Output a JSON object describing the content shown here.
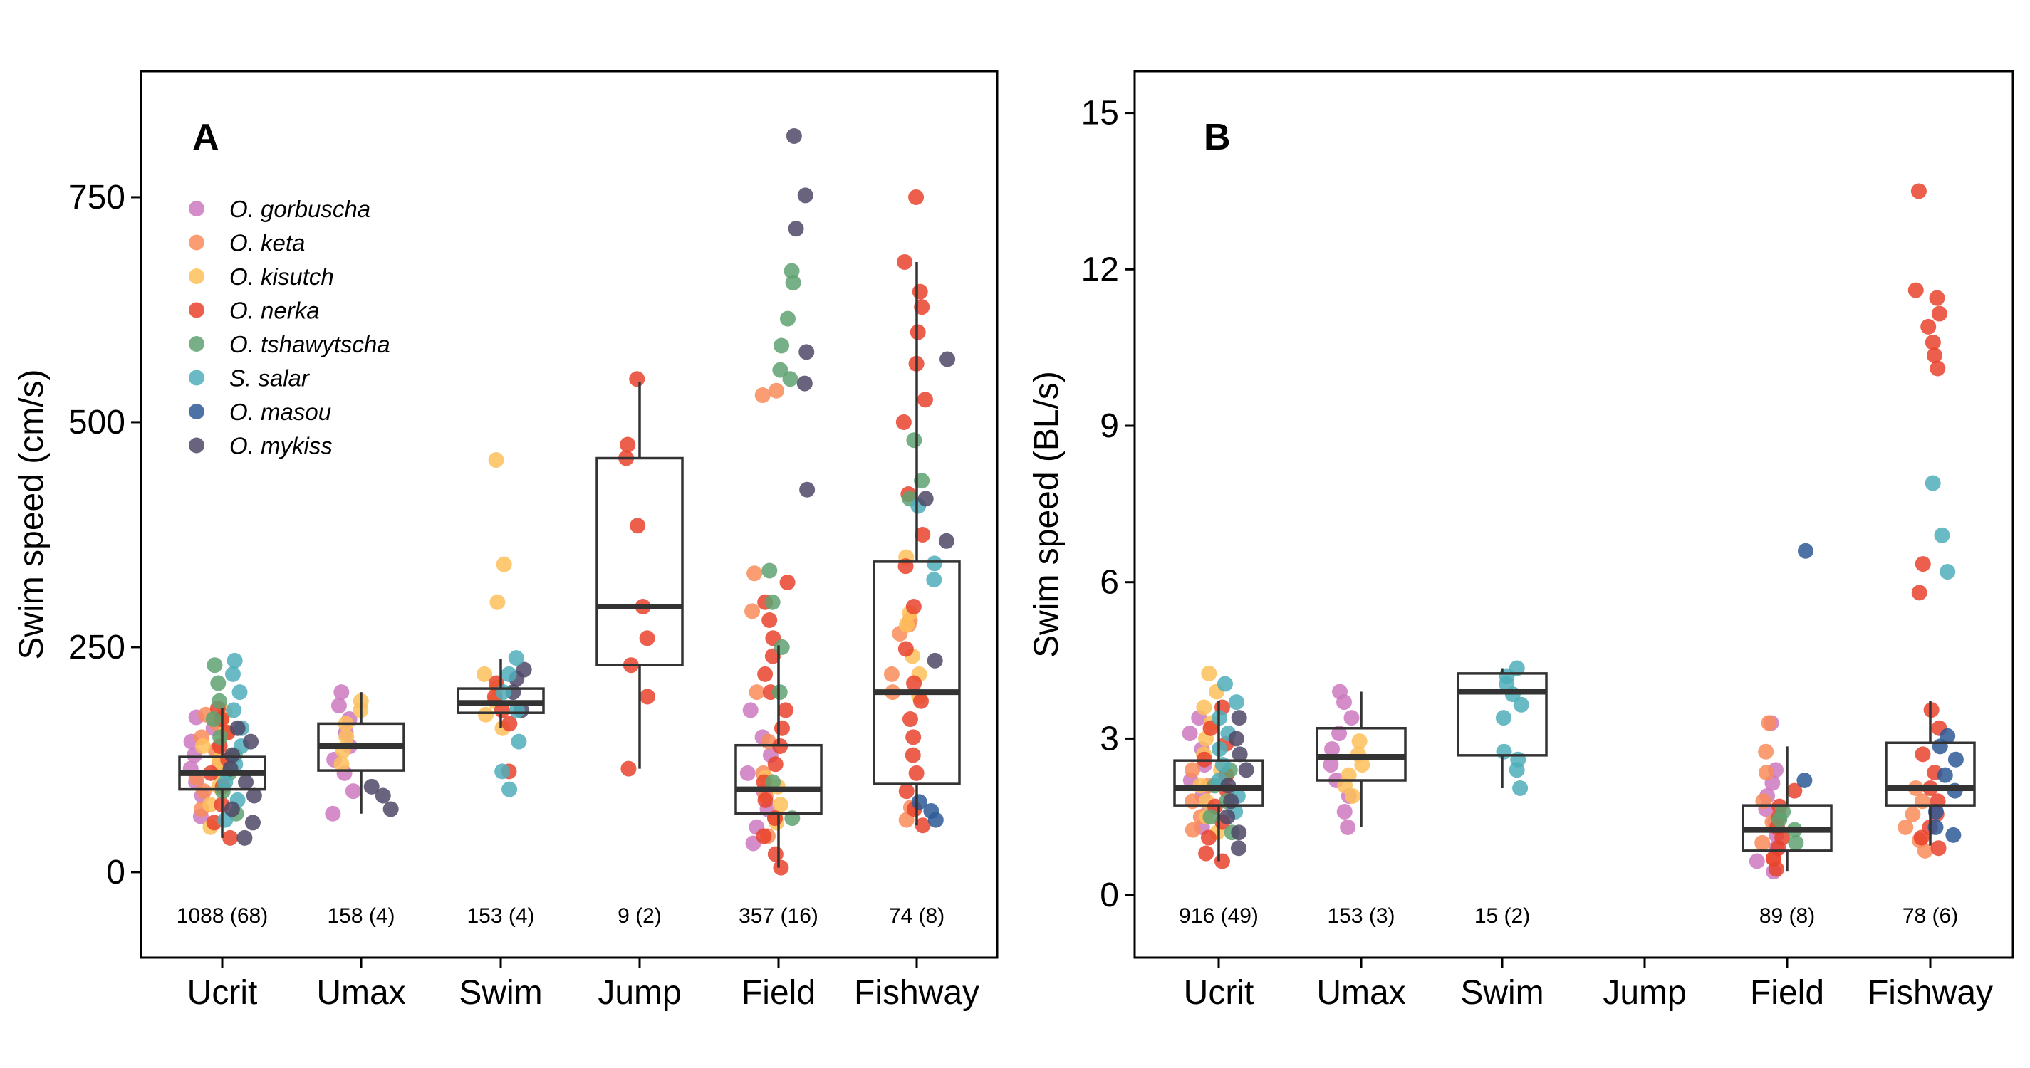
{
  "chart_data": [
    {
      "type": "box",
      "panel_label": "A",
      "ylabel": "Swim speed (cm/s)",
      "xlabel": "",
      "ylim": [
        -95,
        890
      ],
      "yticks": [
        0,
        250,
        500,
        750
      ],
      "categories": [
        "Ucrit",
        "Umax",
        "Swim",
        "Jump",
        "Field",
        "Fishway"
      ],
      "counts": [
        "1088 (68)",
        "158 (4)",
        "153 (4)",
        "9 (2)",
        "357 (16)",
        "74 (8)"
      ],
      "grid": false,
      "legend": {
        "position": "top-left",
        "entries": [
          {
            "name": "O. gorbuscha",
            "color": "#CC79C0"
          },
          {
            "name": "O. keta",
            "color": "#F98C5A"
          },
          {
            "name": "O. kisutch",
            "color": "#FDBF5A"
          },
          {
            "name": "O. nerka",
            "color": "#E8432D"
          },
          {
            "name": "O. tshawytscha",
            "color": "#5FA272"
          },
          {
            "name": "S. salar",
            "color": "#4FAEBB"
          },
          {
            "name": "O. masou",
            "color": "#2E5A96"
          },
          {
            "name": "O. mykiss",
            "color": "#4F4866"
          }
        ]
      },
      "boxes": [
        {
          "category": "Ucrit",
          "q1": 92,
          "median": 110,
          "q3": 128,
          "lower_whisker": 38,
          "upper_whisker": 182
        },
        {
          "category": "Umax",
          "q1": 113,
          "median": 140,
          "q3": 165,
          "lower_whisker": 65,
          "upper_whisker": 200
        },
        {
          "category": "Swim",
          "q1": 177,
          "median": 188,
          "q3": 204,
          "lower_whisker": 160,
          "upper_whisker": 237
        },
        {
          "category": "Jump",
          "q1": 230,
          "median": 295,
          "q3": 460,
          "lower_whisker": 115,
          "upper_whisker": 545
        },
        {
          "category": "Field",
          "q1": 65,
          "median": 92,
          "q3": 141,
          "lower_whisker": 5,
          "upper_whisker": 252
        },
        {
          "category": "Fishway",
          "q1": 98,
          "median": 200,
          "q3": 345,
          "lower_whisker": 52,
          "upper_whisker": 678
        }
      ],
      "points": [
        {
          "category": "Ucrit",
          "species": "O. gorbuscha",
          "values": [
            62,
            85,
            100,
            115,
            130,
            145,
            160,
            172
          ]
        },
        {
          "category": "Ucrit",
          "species": "O. keta",
          "values": [
            70,
            90,
            105,
            120,
            135,
            150,
            165,
            175
          ]
        },
        {
          "category": "Ucrit",
          "species": "O. kisutch",
          "values": [
            50,
            75,
            95,
            110,
            125,
            140,
            155,
            170,
            178
          ]
        },
        {
          "category": "Ucrit",
          "species": "O. nerka",
          "values": [
            38,
            55,
            75,
            95,
            110,
            125,
            140,
            155,
            170,
            182
          ]
        },
        {
          "category": "Ucrit",
          "species": "O. tshawytscha",
          "values": [
            65,
            90,
            110,
            130,
            150,
            170,
            190,
            210,
            230
          ]
        },
        {
          "category": "Ucrit",
          "species": "S. salar",
          "values": [
            58,
            80,
            100,
            120,
            140,
            160,
            180,
            200,
            220,
            235
          ]
        },
        {
          "category": "Ucrit",
          "species": "O. mykiss",
          "values": [
            38,
            55,
            70,
            85,
            100,
            115,
            130,
            145,
            160
          ]
        },
        {
          "category": "Umax",
          "species": "O. gorbuscha",
          "values": [
            65,
            90,
            110,
            125,
            140,
            155,
            170,
            185,
            200
          ]
        },
        {
          "category": "Umax",
          "species": "O. kisutch",
          "values": [
            120,
            135,
            150,
            165,
            180,
            190
          ]
        },
        {
          "category": "Umax",
          "species": "O. mykiss",
          "values": [
            70,
            85,
            95
          ]
        },
        {
          "category": "Swim",
          "species": "O. kisutch",
          "values": [
            160,
            175,
            190,
            205,
            220,
            300,
            342,
            458
          ]
        },
        {
          "category": "Swim",
          "species": "O. nerka",
          "values": [
            112,
            165,
            180,
            195,
            210
          ]
        },
        {
          "category": "Swim",
          "species": "O. mykiss",
          "values": [
            180,
            200,
            215,
            225
          ]
        },
        {
          "category": "Swim",
          "species": "S. salar",
          "values": [
            92,
            112,
            145,
            180,
            200,
            220,
            238
          ]
        },
        {
          "category": "Jump",
          "species": "O. nerka",
          "values": [
            115,
            195,
            230,
            260,
            295,
            385,
            460,
            475,
            548
          ]
        },
        {
          "category": "Field",
          "species": "O. gorbuscha",
          "values": [
            32,
            50,
            70,
            90,
            110,
            130,
            150,
            180
          ]
        },
        {
          "category": "Field",
          "species": "O. keta",
          "values": [
            40,
            60,
            85,
            110,
            145,
            200,
            290,
            332,
            530,
            535
          ]
        },
        {
          "category": "Field",
          "species": "O. kisutch",
          "values": [
            55,
            75,
            95,
            105
          ]
        },
        {
          "category": "Field",
          "species": "O. nerka",
          "values": [
            5,
            20,
            40,
            60,
            80,
            100,
            120,
            140,
            160,
            180,
            200,
            220,
            240,
            260,
            280,
            300,
            322
          ]
        },
        {
          "category": "Field",
          "species": "O. tshawytscha",
          "values": [
            60,
            100,
            200,
            250,
            300,
            335,
            548,
            558,
            585,
            615,
            655,
            668
          ]
        },
        {
          "category": "Field",
          "species": "O. mykiss",
          "values": [
            425,
            543,
            578,
            715,
            752,
            818
          ]
        },
        {
          "category": "Fishway",
          "species": "O. keta",
          "values": [
            58,
            72,
            200,
            220,
            265,
            275,
            280
          ]
        },
        {
          "category": "Fishway",
          "species": "O. kisutch",
          "values": [
            195,
            220,
            240,
            275,
            288,
            350
          ]
        },
        {
          "category": "Fishway",
          "species": "O. nerka",
          "values": [
            52,
            70,
            90,
            110,
            130,
            150,
            170,
            190,
            210,
            248,
            295,
            340,
            375,
            420,
            500,
            525,
            565,
            600,
            628,
            645,
            678,
            750
          ]
        },
        {
          "category": "Fishway",
          "species": "O. tshawytscha",
          "values": [
            415,
            435,
            480
          ]
        },
        {
          "category": "Fishway",
          "species": "S. salar",
          "values": [
            325,
            343,
            407
          ]
        },
        {
          "category": "Fishway",
          "species": "O. masou",
          "values": [
            58,
            68,
            78
          ]
        },
        {
          "category": "Fishway",
          "species": "O. mykiss",
          "values": [
            235,
            368,
            415,
            570
          ]
        }
      ]
    },
    {
      "type": "box",
      "panel_label": "B",
      "ylabel": "Swim speed (BL/s)",
      "xlabel": "",
      "ylim": [
        -1.2,
        15.8
      ],
      "yticks": [
        0,
        3,
        6,
        9,
        12,
        15
      ],
      "categories": [
        "Ucrit",
        "Umax",
        "Swim",
        "Jump",
        "Field",
        "Fishway"
      ],
      "counts": [
        "916 (49)",
        "153 (3)",
        "15 (2)",
        "",
        "89 (8)",
        "78 (6)"
      ],
      "grid": false,
      "boxes": [
        {
          "category": "Ucrit",
          "q1": 1.72,
          "median": 2.05,
          "q3": 2.58,
          "lower_whisker": 0.65,
          "upper_whisker": 3.72
        },
        {
          "category": "Umax",
          "q1": 2.2,
          "median": 2.65,
          "q3": 3.2,
          "lower_whisker": 1.3,
          "upper_whisker": 3.9
        },
        {
          "category": "Swim",
          "q1": 2.68,
          "median": 3.9,
          "q3": 4.25,
          "lower_whisker": 2.05,
          "upper_whisker": 4.35
        },
        {
          "category": "Field",
          "q1": 0.85,
          "median": 1.25,
          "q3": 1.72,
          "lower_whisker": 0.45,
          "upper_whisker": 2.85
        },
        {
          "category": "Fishway",
          "q1": 1.72,
          "median": 2.05,
          "q3": 2.92,
          "lower_whisker": 0.95,
          "upper_whisker": 3.72
        }
      ],
      "points": [
        {
          "category": "Ucrit",
          "species": "O. gorbuscha",
          "values": [
            1.3,
            1.6,
            1.9,
            2.2,
            2.5,
            2.8,
            3.1,
            3.4
          ]
        },
        {
          "category": "Ucrit",
          "species": "O. keta",
          "values": [
            1.25,
            1.5,
            1.8,
            2.1,
            2.4
          ]
        },
        {
          "category": "Ucrit",
          "species": "O. kisutch",
          "values": [
            1.2,
            1.5,
            1.8,
            2.1,
            2.4,
            2.7,
            3.0,
            3.3,
            3.6,
            3.9,
            4.25
          ]
        },
        {
          "category": "Ucrit",
          "species": "O. nerka",
          "values": [
            0.65,
            0.8,
            1.1,
            1.4,
            1.7,
            2.0,
            2.3,
            2.6,
            2.9,
            3.2,
            3.6
          ]
        },
        {
          "category": "Ucrit",
          "species": "O. tshawytscha",
          "values": [
            1.2,
            1.5,
            1.8,
            2.1,
            2.4
          ]
        },
        {
          "category": "Ucrit",
          "species": "S. salar",
          "values": [
            1.6,
            1.9,
            2.2,
            2.5,
            2.8,
            3.1,
            3.4,
            3.7,
            4.05
          ]
        },
        {
          "category": "Ucrit",
          "species": "O. mykiss",
          "values": [
            0.9,
            1.2,
            1.5,
            1.8,
            2.1,
            2.4,
            2.7,
            3.0,
            3.4
          ]
        },
        {
          "category": "Umax",
          "species": "O. gorbuscha",
          "values": [
            1.3,
            1.6,
            1.9,
            2.2,
            2.5,
            2.8,
            3.1,
            3.4,
            3.7,
            3.9
          ]
        },
        {
          "category": "Umax",
          "species": "O. kisutch",
          "values": [
            1.9,
            2.1,
            2.3,
            2.5,
            2.7,
            2.95
          ]
        },
        {
          "category": "Swim",
          "species": "S. salar",
          "values": [
            2.05,
            2.4,
            2.6,
            2.75,
            3.4,
            3.65,
            3.85,
            4.05,
            4.2,
            4.35
          ]
        },
        {
          "category": "Field",
          "species": "O. gorbuscha",
          "values": [
            0.45,
            0.65,
            0.9,
            1.15,
            1.4,
            1.65,
            1.9,
            2.15,
            2.4,
            3.3
          ]
        },
        {
          "category": "Field",
          "species": "O. keta",
          "values": [
            0.7,
            1.0,
            1.4,
            1.8,
            2.35,
            2.75,
            3.3
          ]
        },
        {
          "category": "Field",
          "species": "O. nerka",
          "values": [
            0.5,
            0.7,
            0.9,
            1.1,
            1.3,
            1.5,
            1.7,
            2.0
          ]
        },
        {
          "category": "Field",
          "species": "O. tshawytscha",
          "values": [
            1.0,
            1.25,
            1.45,
            1.6
          ]
        },
        {
          "category": "Field",
          "species": "O. masou",
          "values": [
            2.2,
            6.6
          ]
        },
        {
          "category": "Fishway",
          "species": "O. keta",
          "values": [
            0.85,
            1.05,
            1.3,
            1.55,
            1.8,
            2.05
          ]
        },
        {
          "category": "Fishway",
          "species": "O. nerka",
          "values": [
            0.9,
            1.1,
            1.3,
            1.55,
            1.8,
            2.05,
            2.35,
            2.7,
            3.2,
            3.55,
            5.8,
            6.35,
            10.1,
            10.35,
            10.6,
            10.9,
            11.15,
            11.45,
            11.6,
            13.5
          ]
        },
        {
          "category": "Fishway",
          "species": "O. masou",
          "values": [
            1.15,
            1.3,
            1.6,
            2.0,
            2.3,
            2.6,
            2.85,
            3.05
          ]
        },
        {
          "category": "Fishway",
          "species": "S. salar",
          "values": [
            6.2,
            6.9,
            7.9
          ]
        }
      ]
    }
  ]
}
